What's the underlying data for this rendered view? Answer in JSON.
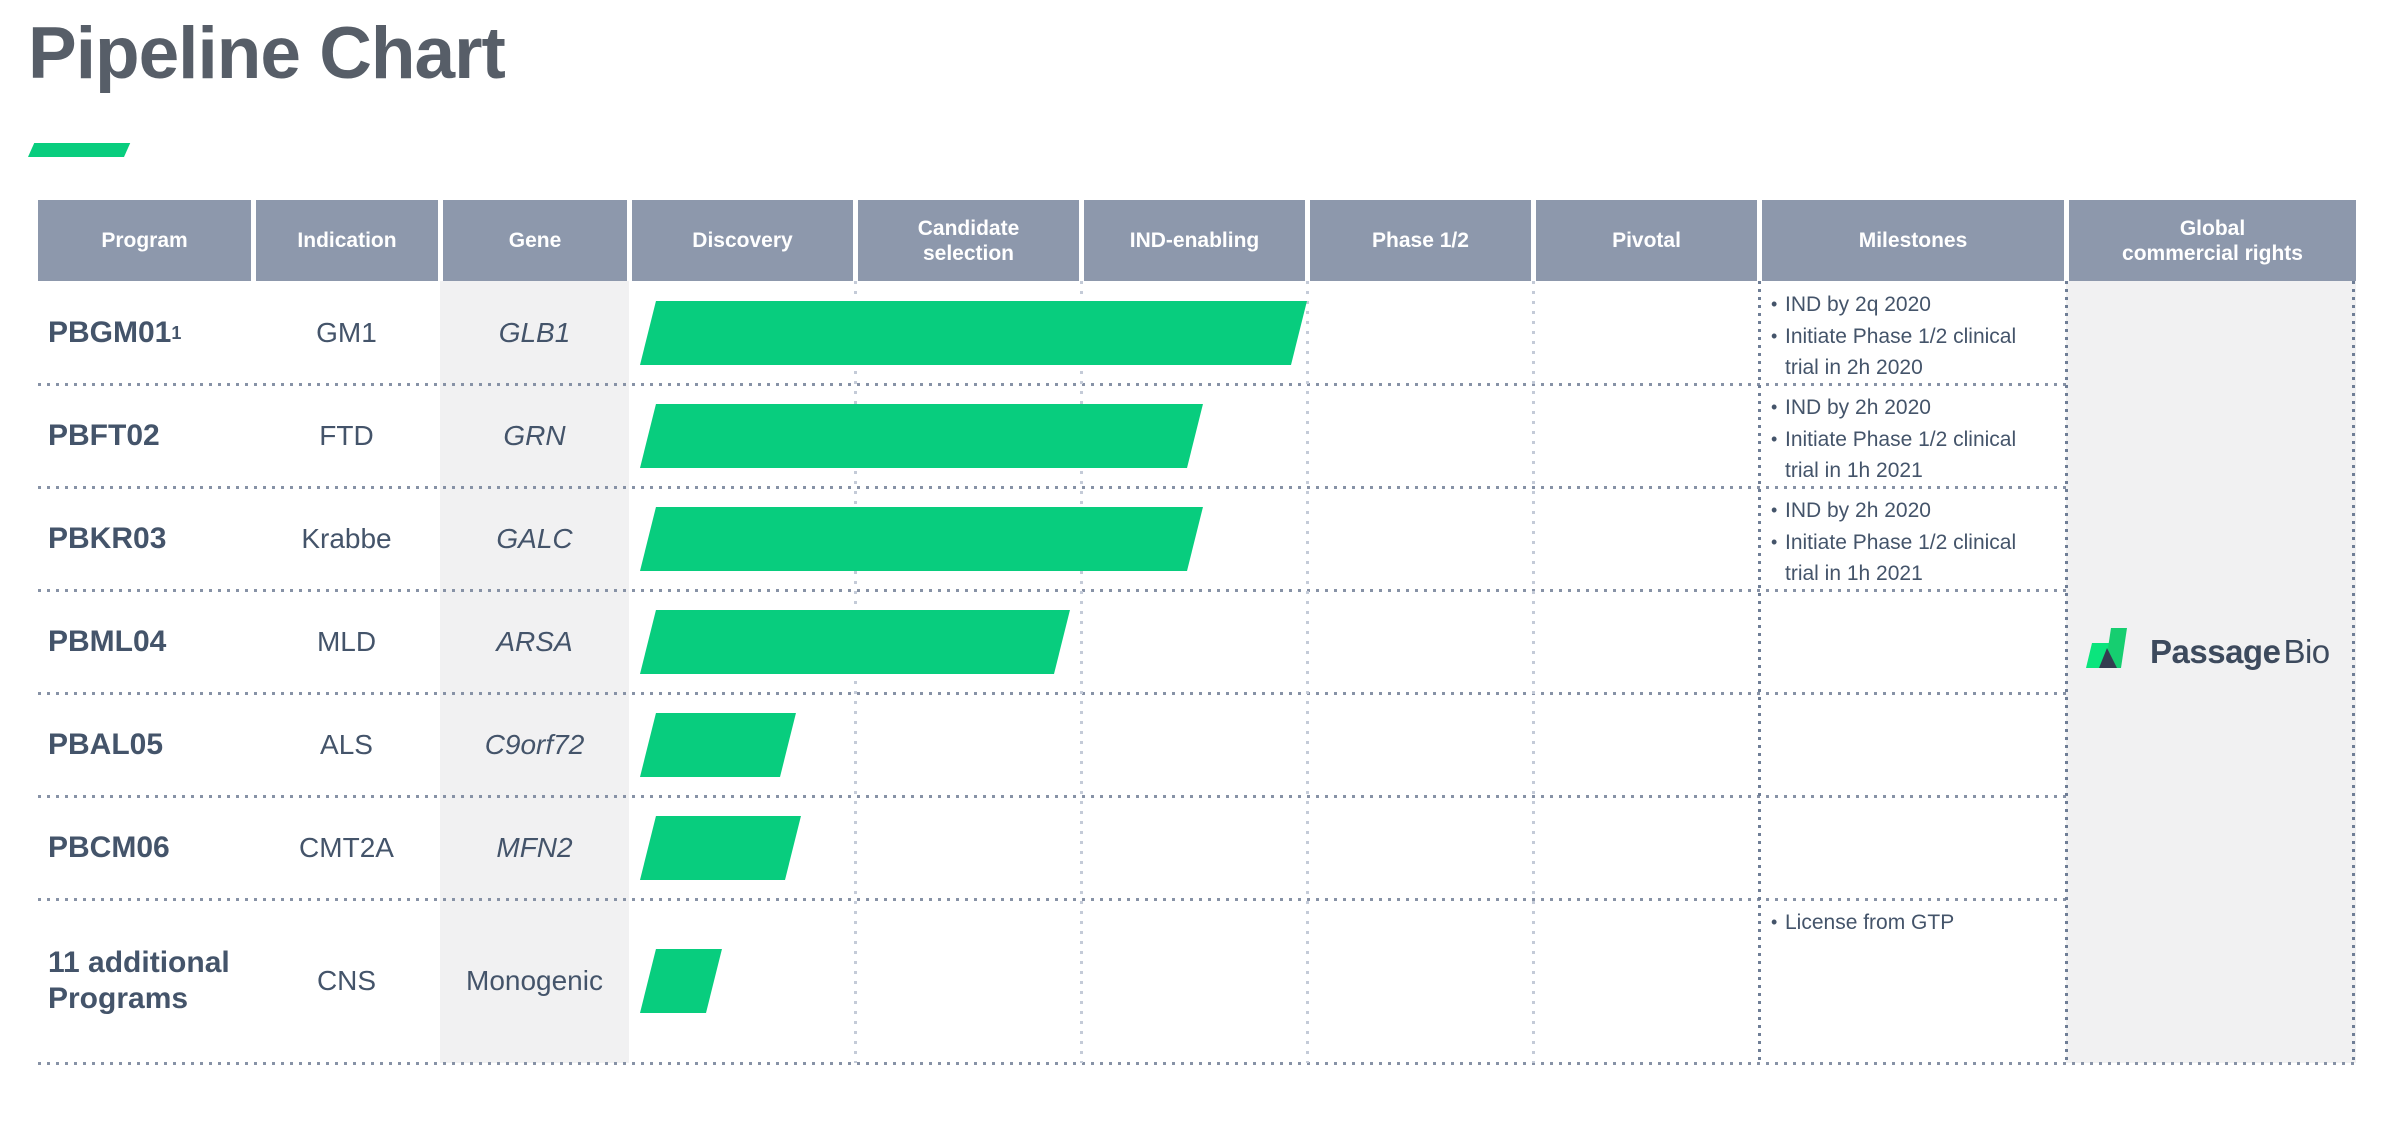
{
  "title": "Pipeline Chart",
  "logo": {
    "bold": "Passage",
    "regular": "Bio"
  },
  "colors": {
    "bar_green": "#08CD7E",
    "title_underline_green": "#08CD7E",
    "header_bg": "#8D98AC",
    "header_text": "#FFFFFF",
    "body_text": "#44546A",
    "title_text": "#575E68",
    "column_shade": "#F1F1F2",
    "row_dotted": "#8792A6",
    "stage_dotted": "#C4CBD8",
    "milestone_dotted": "#6F7E96",
    "logo_green_left": "#0BE57D",
    "logo_green_right": "#16CE70",
    "logo_navy": "#333E50",
    "logo_text": "#3D4A5D"
  },
  "chart_data": {
    "type": "bar",
    "orientation": "horizontal",
    "title": "Pipeline Chart",
    "info_columns": [
      "Program",
      "Indication",
      "Gene"
    ],
    "stage_columns": [
      "Discovery",
      "Candidate\nselection",
      "IND-enabling",
      "Phase 1/2",
      "Pivotal"
    ],
    "extra_columns": [
      "Milestones",
      "Global\ncommercial rights"
    ],
    "units": "stage_progress is bar length in stage-column units (Discovery start = 0, each stage column = 1 unit)",
    "legend_position": "none",
    "grid": "dotted row and column separators",
    "rows": [
      {
        "program": "PBGM01",
        "program_sup": "1",
        "indication": "GM1",
        "gene": "GLB1",
        "gene_italic": true,
        "stage_progress": 3.0,
        "milestones": [
          "IND by 2q 2020",
          "Initiate Phase 1/2 clinical trial in 2h 2020"
        ]
      },
      {
        "program": "PBFT02",
        "indication": "FTD",
        "gene": "GRN",
        "gene_italic": true,
        "stage_progress": 2.54,
        "milestones": [
          "IND by 2h 2020",
          "Initiate Phase 1/2 clinical trial in 1h 2021"
        ]
      },
      {
        "program": "PBKR03",
        "indication": "Krabbe",
        "gene": "GALC",
        "gene_italic": true,
        "stage_progress": 2.54,
        "milestones": [
          "IND by 2h 2020",
          "Initiate Phase 1/2 clinical trial in 1h 2021"
        ]
      },
      {
        "program": "PBML04",
        "indication": "MLD",
        "gene": "ARSA",
        "gene_italic": true,
        "stage_progress": 1.95,
        "milestones": []
      },
      {
        "program": "PBAL05",
        "indication": "ALS",
        "gene": "C9orf72",
        "gene_italic": true,
        "stage_progress": 0.74,
        "milestones": []
      },
      {
        "program": "PBCM06",
        "indication": "CMT2A",
        "gene": "MFN2",
        "gene_italic": true,
        "stage_progress": 0.76,
        "milestones": []
      },
      {
        "program": "11 additional Programs",
        "indication": "CNS",
        "gene": "Monogenic",
        "gene_italic": false,
        "stage_progress": 0.41,
        "milestones": [
          "License from GTP"
        ]
      }
    ],
    "global_rights_brand": "PassageBio"
  }
}
